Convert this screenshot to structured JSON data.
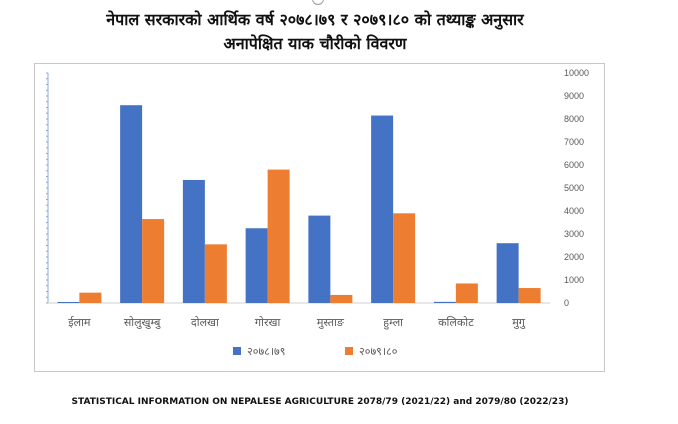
{
  "title": {
    "line1": "नेपाल सरकारको आर्थिक वर्ष २०७८।७९ र २०७९।८० को तथ्याङ्क अनुसार",
    "line2": "अनापेक्षित याक चौरीको विवरण"
  },
  "source_note": "STATISTICAL INFORMATION ON NEPALESE AGRICULTURE 2078/79 (2021/22) and 2079/80 (2022/23)",
  "chart_data": {
    "type": "bar",
    "categories": [
      "ईलाम",
      "सोलुखुम्बु",
      "दोलखा",
      "गोरखा",
      "मुस्ताङ",
      "हुम्ला",
      "कलिकोट",
      "मुगु"
    ],
    "series": [
      {
        "name": "२०७८।७९",
        "color": "#4472c4",
        "values": [
          20,
          8600,
          5350,
          3250,
          3800,
          8150,
          50,
          2600
        ]
      },
      {
        "name": "२०७९।८०",
        "color": "#ed7d31",
        "values": [
          450,
          3650,
          2550,
          5800,
          350,
          3900,
          850,
          650
        ]
      }
    ],
    "ylim": [
      0,
      10000
    ],
    "yticks": [
      "0",
      "1000",
      "2000",
      "3000",
      "4000",
      "5000",
      "6000",
      "7000",
      "8000",
      "9000",
      "10000"
    ],
    "y_axis_side": "right",
    "grid": false,
    "legend_position": "bottom",
    "xlabel": "",
    "ylabel": ""
  }
}
